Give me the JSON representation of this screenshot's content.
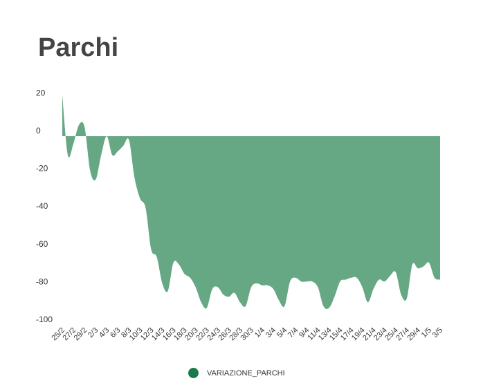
{
  "page": {
    "title": "Parchi"
  },
  "chart_data": {
    "type": "area",
    "title": "Parchi",
    "xlabel": "",
    "ylabel": "",
    "ylim": [
      -100,
      25
    ],
    "yticks": [
      20,
      0,
      -20,
      -40,
      -60,
      -80,
      -100
    ],
    "grid": false,
    "legend_position": "bottom",
    "color": "#66a884",
    "x": [
      "25/2",
      "26/2",
      "27/2",
      "28/2",
      "29/2",
      "1/3",
      "2/3",
      "3/3",
      "4/3",
      "5/3",
      "6/3",
      "7/3",
      "8/3",
      "9/3",
      "10/3",
      "11/3",
      "12/3",
      "13/3",
      "14/3",
      "15/3",
      "16/3",
      "17/3",
      "18/3",
      "19/3",
      "20/3",
      "21/3",
      "22/3",
      "23/3",
      "24/3",
      "25/3",
      "26/3",
      "27/3",
      "28/3",
      "29/3",
      "30/3",
      "31/3",
      "1/4",
      "2/4",
      "3/4",
      "4/4",
      "5/4",
      "6/4",
      "7/4",
      "8/4",
      "9/4",
      "10/4",
      "11/4",
      "12/4",
      "13/4",
      "14/4",
      "15/4",
      "16/4",
      "17/4",
      "18/4",
      "19/4",
      "20/4",
      "21/4",
      "22/4",
      "23/4",
      "24/4",
      "25/4",
      "26/4",
      "27/4",
      "28/4",
      "29/4",
      "30/4",
      "1/5",
      "2/5",
      "3/5"
    ],
    "xtick_labels": [
      "25/2",
      "27/2",
      "29/2",
      "2/3",
      "4/3",
      "6/3",
      "8/3",
      "10/3",
      "12/3",
      "14/3",
      "16/3",
      "18/3",
      "20/3",
      "22/3",
      "24/3",
      "26/3",
      "28/3",
      "30/3",
      "1/4",
      "3/4",
      "5/4",
      "7/4",
      "9/4",
      "11/4",
      "13/4",
      "15/4",
      "17/4",
      "19/4",
      "21/4",
      "23/4",
      "25/4",
      "27/4",
      "29/4",
      "1/5",
      "3/5"
    ],
    "series": [
      {
        "name": "VARIAZIONE_PARCHI",
        "values": [
          22,
          -10,
          -4,
          6,
          5,
          -18,
          -23,
          -10,
          0,
          -10,
          -8,
          -5,
          -2,
          -22,
          -33,
          -38,
          -60,
          -64,
          -78,
          -82,
          -67,
          -68,
          -73,
          -75,
          -80,
          -88,
          -91,
          -81,
          -80,
          -84,
          -85,
          -83,
          -88,
          -90,
          -80,
          -78,
          -79,
          -79,
          -81,
          -87,
          -90,
          -77,
          -75,
          -77,
          -77,
          -77,
          -80,
          -90,
          -91,
          -85,
          -77,
          -76,
          -75,
          -75,
          -80,
          -88,
          -81,
          -76,
          -77,
          -74,
          -72,
          -84,
          -86,
          -68,
          -70,
          -69,
          -67,
          -75,
          -76
        ]
      }
    ]
  },
  "legend": {
    "label": "VARIAZIONE_PARCHI",
    "color": "#1b7a4c"
  }
}
